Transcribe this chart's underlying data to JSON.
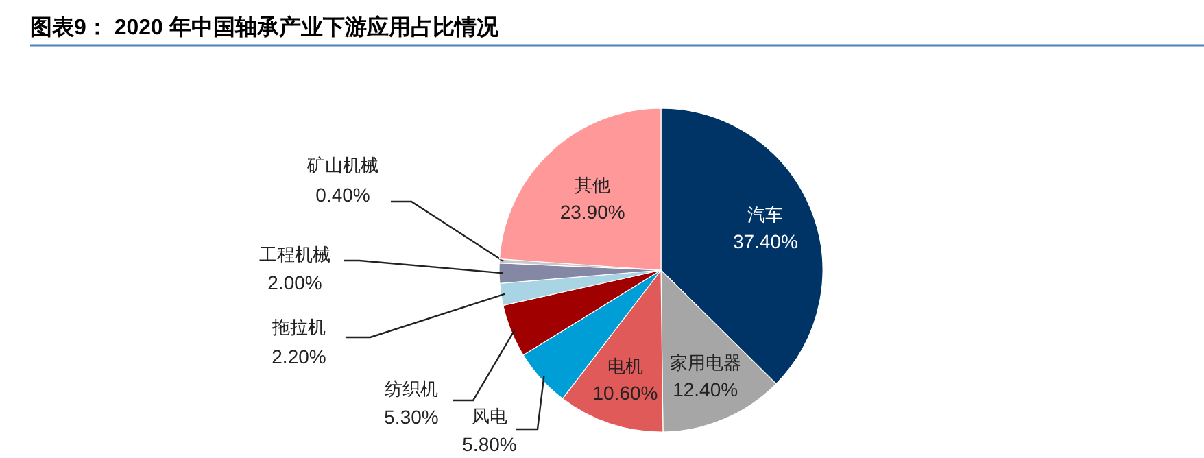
{
  "chart_data": {
    "type": "pie",
    "title": "图表9：  2020 年中国轴承产业下游应用占比情况",
    "categories": [
      "汽车",
      "家用电器",
      "电机",
      "风电",
      "纺织机",
      "拖拉机",
      "工程机械",
      "矿山机械",
      "其他"
    ],
    "values": [
      37.4,
      12.4,
      10.6,
      5.8,
      5.3,
      2.2,
      2.0,
      0.4,
      23.9
    ],
    "colors": [
      "#003366",
      "#a6a6a6",
      "#e05a5a",
      "#009ed6",
      "#a00000",
      "#a8d4e4",
      "#8488a4",
      "#c8c8d0",
      "#ff9999"
    ],
    "value_labels": [
      "37.40%",
      "12.40%",
      "10.60%",
      "5.80%",
      "5.30%",
      "2.20%",
      "2.00%",
      "0.40%",
      "23.90%"
    ]
  }
}
